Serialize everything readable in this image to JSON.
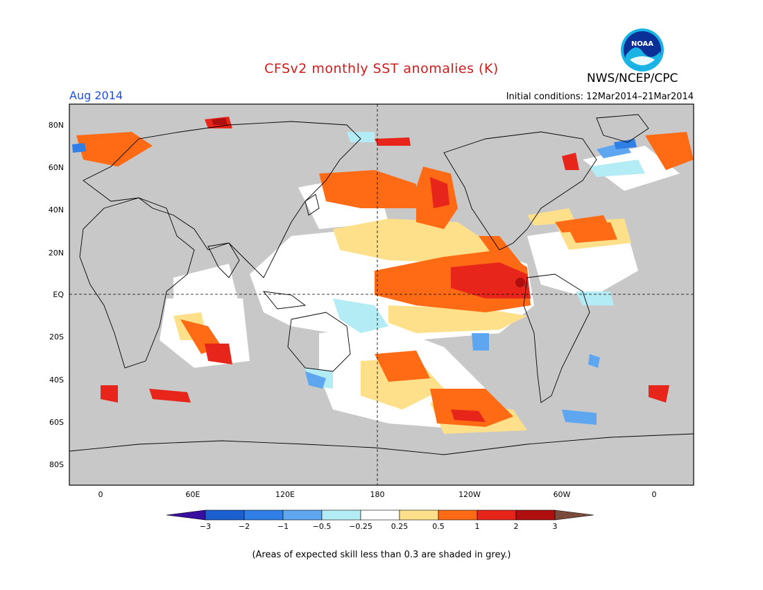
{
  "header": {
    "title": "CFSv2 monthly SST anomalies (K)",
    "month": "Aug 2014",
    "agency": "NWS/NCEP/CPC",
    "initial_conditions": "Initial conditions: 12Mar2014–21Mar2014",
    "logo_text": "NOAA"
  },
  "map": {
    "lat_labels": [
      "80N",
      "60N",
      "40N",
      "20N",
      "EQ",
      "20S",
      "40S",
      "60S",
      "80S"
    ],
    "lon_labels": [
      "0",
      "60E",
      "120E",
      "180",
      "120W",
      "60W",
      "0"
    ],
    "masked_color": "#c8c8c8",
    "land_color": "#c8c8c8"
  },
  "colorbar": {
    "labels": [
      "−3",
      "−2",
      "−1",
      "−0.5",
      "−0.25",
      "0.25",
      "0.5",
      "1",
      "2",
      "3"
    ],
    "colors": [
      "#3a0ea0",
      "#1c5fd1",
      "#2f7fe6",
      "#5ea6f0",
      "#b4ecf5",
      "#ffffff",
      "#ffe08a",
      "#ff6a14",
      "#e8251a",
      "#b00f0f",
      "#7a4a3a"
    ]
  },
  "footnote": "(Areas of expected skill less than 0.3 are shaded in grey.)"
}
